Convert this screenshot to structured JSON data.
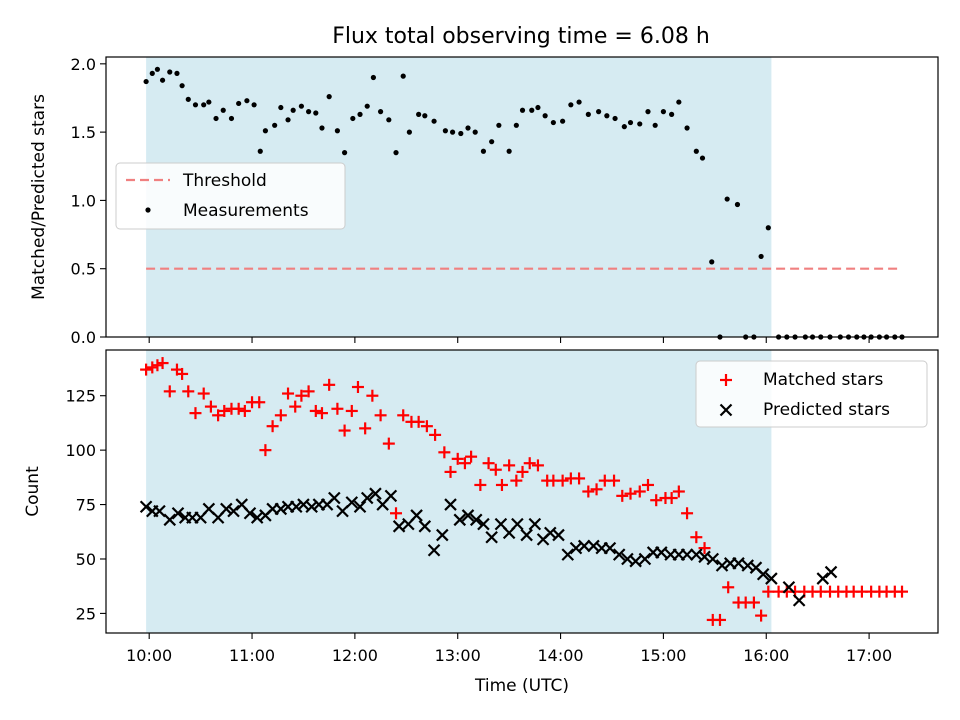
{
  "title": "Flux total observing time = 6.08 h",
  "chart_data": [
    {
      "type": "scatter",
      "panel": "top",
      "ylabel": "Matched/Predicted stars",
      "ylim": [
        0,
        2.05
      ],
      "yticks": [
        0.0,
        0.5,
        1.0,
        1.5,
        2.0
      ],
      "ytick_labels": [
        "0.0",
        "0.5",
        "1.0",
        "1.5",
        "2.0"
      ],
      "x_unit": "hours UTC",
      "xlim": [
        9.58,
        17.67
      ],
      "shaded_span": [
        9.97,
        16.05
      ],
      "threshold": {
        "name": "Threshold",
        "y": 0.5,
        "x": [
          9.97,
          17.32
        ],
        "color": "#f08080"
      },
      "legend": {
        "placement": "center-left",
        "items": [
          "Threshold",
          "Measurements"
        ]
      },
      "grid": false,
      "series": [
        {
          "name": "Measurements",
          "color": "#000000",
          "x": [
            9.97,
            10.03,
            10.08,
            10.13,
            10.2,
            10.27,
            10.32,
            10.38,
            10.45,
            10.53,
            10.58,
            10.65,
            10.72,
            10.8,
            10.87,
            10.95,
            11.02,
            11.08,
            11.13,
            11.22,
            11.28,
            11.35,
            11.4,
            11.48,
            11.55,
            11.62,
            11.68,
            11.75,
            11.83,
            11.9,
            11.98,
            12.05,
            12.12,
            12.18,
            12.25,
            12.33,
            12.4,
            12.47,
            12.53,
            12.62,
            12.68,
            12.77,
            12.88,
            12.95,
            13.03,
            13.1,
            13.17,
            13.25,
            13.33,
            13.4,
            13.5,
            13.57,
            13.63,
            13.72,
            13.78,
            13.85,
            13.93,
            14.02,
            14.1,
            14.18,
            14.27,
            14.37,
            14.45,
            14.53,
            14.62,
            14.68,
            14.77,
            14.85,
            14.92,
            15.0,
            15.08,
            15.15,
            15.23,
            15.32,
            15.38,
            15.47,
            15.55,
            15.62,
            15.72,
            15.8,
            15.88,
            15.95,
            16.02,
            16.12,
            16.2,
            16.28,
            16.38,
            16.45,
            16.53,
            16.62,
            16.72,
            16.8,
            16.88,
            16.95,
            17.02,
            17.1,
            17.17,
            17.25,
            17.32
          ],
          "y": [
            1.87,
            1.93,
            1.96,
            1.88,
            1.94,
            1.93,
            1.84,
            1.74,
            1.7,
            1.7,
            1.72,
            1.6,
            1.66,
            1.6,
            1.71,
            1.73,
            1.7,
            1.36,
            1.51,
            1.55,
            1.68,
            1.59,
            1.66,
            1.69,
            1.65,
            1.64,
            1.53,
            1.76,
            1.51,
            1.35,
            1.6,
            1.63,
            1.69,
            1.9,
            1.65,
            1.59,
            1.35,
            1.91,
            1.5,
            1.63,
            1.62,
            1.58,
            1.51,
            1.5,
            1.49,
            1.53,
            1.5,
            1.36,
            1.43,
            1.55,
            1.36,
            1.55,
            1.66,
            1.66,
            1.68,
            1.62,
            1.57,
            1.58,
            1.7,
            1.72,
            1.63,
            1.65,
            1.62,
            1.6,
            1.54,
            1.57,
            1.56,
            1.65,
            1.55,
            1.65,
            1.63,
            1.72,
            1.53,
            1.36,
            1.31,
            0.55,
            0.0,
            1.01,
            0.97,
            0.0,
            0.0,
            0.59,
            0.8,
            0.0,
            0.0,
            0.0,
            0.0,
            0.0,
            0.0,
            0.0,
            0.0,
            0.0,
            0.0,
            0.0,
            0.0,
            0.0,
            0.0,
            0.0,
            0.0
          ]
        }
      ]
    },
    {
      "type": "scatter",
      "panel": "bottom",
      "xlabel": "Time (UTC)",
      "ylabel": "Count",
      "ylim": [
        16,
        146
      ],
      "yticks": [
        25,
        50,
        75,
        100,
        125
      ],
      "ytick_labels": [
        "25",
        "50",
        "75",
        "100",
        "125"
      ],
      "xlim": [
        9.58,
        17.67
      ],
      "xticks": [
        10,
        11,
        12,
        13,
        14,
        15,
        16,
        17
      ],
      "xtick_labels": [
        "10:00",
        "11:00",
        "12:00",
        "13:00",
        "14:00",
        "15:00",
        "16:00",
        "17:00"
      ],
      "shaded_span": [
        9.97,
        16.05
      ],
      "legend": {
        "placement": "top-right",
        "items": [
          "Matched stars",
          "Predicted stars"
        ]
      },
      "grid": false,
      "series": [
        {
          "name": "Matched stars",
          "marker": "plus",
          "color": "#ff0000",
          "x": [
            9.97,
            10.03,
            10.08,
            10.13,
            10.2,
            10.27,
            10.32,
            10.38,
            10.45,
            10.53,
            10.6,
            10.67,
            10.73,
            10.8,
            10.87,
            10.93,
            11.0,
            11.07,
            11.13,
            11.2,
            11.28,
            11.35,
            11.42,
            11.48,
            11.55,
            11.62,
            11.68,
            11.75,
            11.83,
            11.9,
            11.97,
            12.03,
            12.1,
            12.17,
            12.25,
            12.33,
            12.4,
            12.47,
            12.55,
            12.62,
            12.7,
            12.78,
            12.87,
            12.93,
            13.0,
            13.07,
            13.13,
            13.22,
            13.3,
            13.37,
            13.43,
            13.5,
            13.57,
            13.63,
            13.7,
            13.78,
            13.87,
            13.93,
            14.02,
            14.1,
            14.18,
            14.27,
            14.35,
            14.43,
            14.52,
            14.6,
            14.68,
            14.77,
            14.85,
            14.93,
            15.02,
            15.08,
            15.15,
            15.23,
            15.32,
            15.4,
            15.48,
            15.55,
            15.63,
            15.73,
            15.8,
            15.88,
            15.95,
            16.02,
            16.12,
            16.2,
            16.28,
            16.37,
            16.45,
            16.53,
            16.62,
            16.7,
            16.78,
            16.85,
            16.93,
            17.02,
            17.1,
            17.17,
            17.25,
            17.32
          ],
          "y": [
            137,
            138,
            139,
            140,
            127,
            137,
            135,
            127,
            117,
            126,
            120,
            116,
            118,
            119,
            119,
            118,
            122,
            122,
            100,
            111,
            116,
            126,
            120,
            125,
            127,
            118,
            117,
            130,
            119,
            109,
            118,
            129,
            110,
            125,
            116,
            103,
            71,
            116,
            113,
            113,
            111,
            107,
            99,
            90,
            96,
            94,
            97,
            84,
            94,
            91,
            84,
            93,
            86,
            90,
            94,
            93,
            86,
            86,
            86,
            87,
            87,
            81,
            82,
            86,
            86,
            79,
            80,
            81,
            84,
            77,
            78,
            78,
            81,
            71,
            60,
            55,
            22,
            22,
            37,
            30,
            30,
            30,
            24,
            35,
            35,
            35,
            35,
            35,
            35,
            35,
            35,
            35,
            35,
            35,
            35,
            35,
            35,
            35,
            35,
            35
          ],
          "values_note": ""
        },
        {
          "name": "Predicted stars",
          "marker": "x",
          "color": "#000000",
          "x": [
            9.97,
            10.03,
            10.1,
            10.2,
            10.28,
            10.35,
            10.42,
            10.5,
            10.58,
            10.67,
            10.75,
            10.82,
            10.9,
            10.98,
            11.05,
            11.13,
            11.2,
            11.28,
            11.35,
            11.43,
            11.5,
            11.58,
            11.65,
            11.73,
            11.8,
            11.88,
            11.97,
            12.05,
            12.12,
            12.2,
            12.27,
            12.35,
            12.43,
            12.52,
            12.6,
            12.68,
            12.77,
            12.85,
            12.93,
            13.02,
            13.1,
            13.18,
            13.25,
            13.33,
            13.42,
            13.5,
            13.58,
            13.67,
            13.75,
            13.83,
            13.9,
            13.98,
            14.07,
            14.15,
            14.23,
            14.32,
            14.4,
            14.48,
            14.57,
            14.65,
            14.73,
            14.82,
            14.9,
            14.98,
            15.07,
            15.15,
            15.23,
            15.32,
            15.4,
            15.48,
            15.57,
            15.65,
            15.73,
            15.82,
            15.9,
            15.97,
            16.05,
            16.22,
            16.32,
            16.55,
            16.63
          ],
          "y": [
            74,
            72,
            72,
            68,
            71,
            69,
            69,
            69,
            73,
            69,
            73,
            72,
            75,
            71,
            69,
            70,
            73,
            73,
            74,
            74,
            75,
            74,
            75,
            75,
            78,
            72,
            76,
            74,
            78,
            80,
            75,
            79,
            65,
            66,
            70,
            65,
            54,
            61,
            75,
            68,
            70,
            68,
            66,
            60,
            66,
            62,
            66,
            61,
            66,
            59,
            62,
            61,
            52,
            55,
            56,
            56,
            55,
            55,
            52,
            50,
            49,
            50,
            53,
            53,
            52,
            52,
            52,
            52,
            51,
            50,
            47,
            48,
            48,
            47,
            46,
            43,
            41,
            37,
            31,
            41,
            44
          ],
          "values_note": ""
        }
      ]
    }
  ]
}
